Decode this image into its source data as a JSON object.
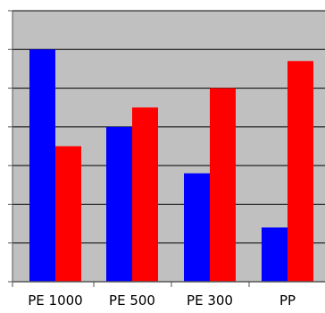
{
  "chart_data": {
    "type": "bar",
    "categories": [
      "PE 1000",
      "PE 500",
      "PE 300",
      "PP"
    ],
    "series": [
      {
        "color": "#0000ff",
        "values": [
          6.0,
          4.0,
          2.8,
          1.4
        ]
      },
      {
        "color": "#ff0000",
        "values": [
          3.5,
          4.5,
          5.0,
          5.7
        ]
      }
    ],
    "ylim": [
      0,
      7
    ],
    "y_gridlines": [
      1,
      2,
      3,
      4,
      5,
      6,
      7
    ],
    "grid": true,
    "legend": "none",
    "title": "",
    "xlabel": "",
    "ylabel": "",
    "plot_background": "#c0c0c0"
  }
}
